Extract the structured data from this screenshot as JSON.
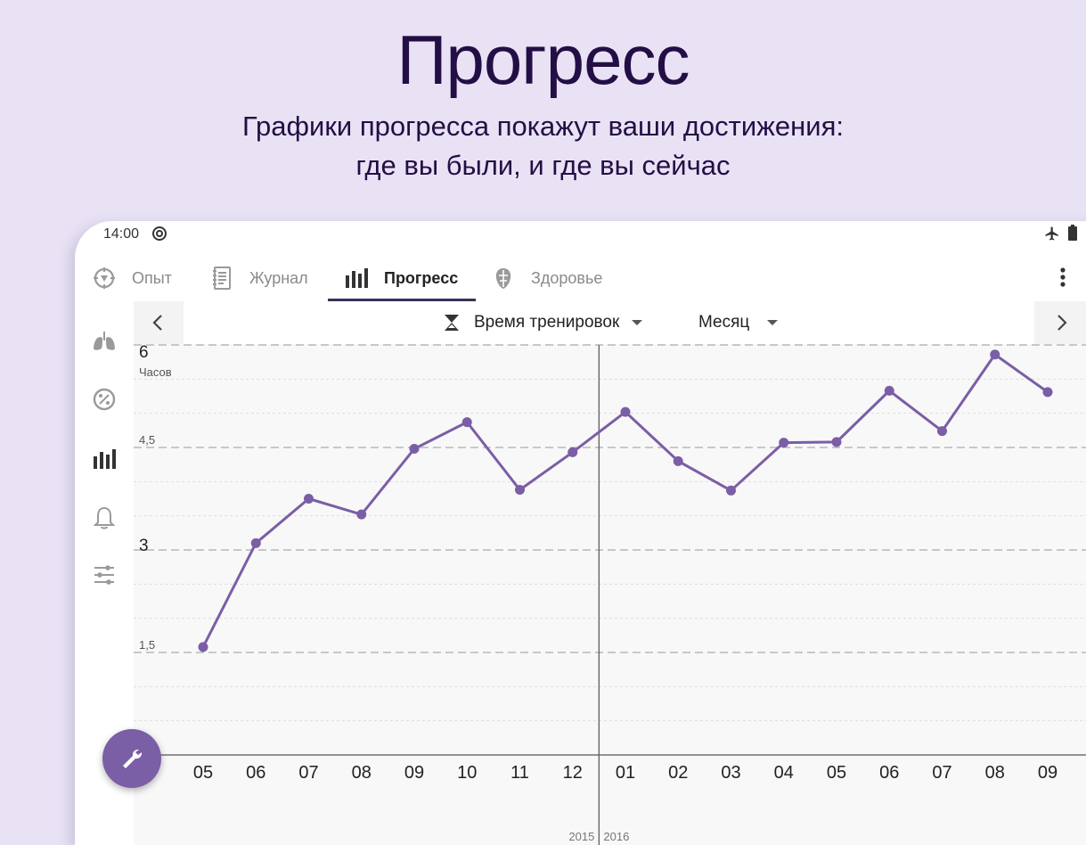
{
  "hero": {
    "title": "Прогресс",
    "subtitle_line1": "Графики прогресса покажут ваши достижения:",
    "subtitle_line2": "где вы были, и где вы сейчас"
  },
  "status_bar": {
    "time": "14:00"
  },
  "tabs": [
    {
      "label": "Опыт",
      "icon": "compass-icon",
      "active": false
    },
    {
      "label": "Журнал",
      "icon": "journal-icon",
      "active": false
    },
    {
      "label": "Прогресс",
      "icon": "bar-chart-icon",
      "active": true
    },
    {
      "label": "Здоровье",
      "icon": "health-icon",
      "active": false
    }
  ],
  "sidebar": {
    "items": [
      "lungs-icon",
      "percent-gauge-icon",
      "bar-chart-icon",
      "bell-icon",
      "sliders-icon"
    ],
    "active_index": 2
  },
  "chart_header": {
    "metric_label": "Время тренировок",
    "period_label": "Месяц"
  },
  "colors": {
    "accent": "#7a5ea6",
    "line": "#7a5ea6",
    "background": "#e9e2f5",
    "title": "#230f45"
  },
  "chart_data": {
    "type": "line",
    "ylabel": "Часов",
    "ylim": [
      0,
      6
    ],
    "y_major_ticks": [
      "6",
      "3"
    ],
    "y_minor_ticks": [
      "4,5",
      "1,5"
    ],
    "categories": [
      "05",
      "06",
      "07",
      "08",
      "09",
      "10",
      "11",
      "12",
      "01",
      "02",
      "03",
      "04",
      "05",
      "06",
      "07",
      "08",
      "09"
    ],
    "year_labels": [
      "2015",
      "2016"
    ],
    "series": [
      {
        "values": [
          1.58,
          3.1,
          3.75,
          3.52,
          4.48,
          4.87,
          3.88,
          4.43,
          5.02,
          4.3,
          3.87,
          4.57,
          4.58,
          5.33,
          4.74,
          5.86,
          5.31
        ]
      }
    ],
    "grid": true
  }
}
